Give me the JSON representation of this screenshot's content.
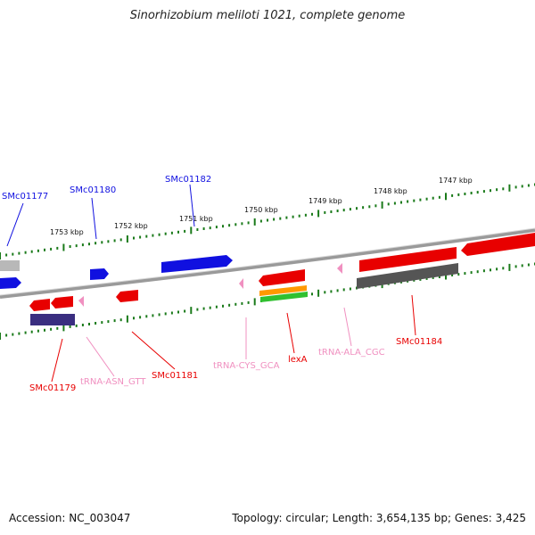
{
  "title": "Sinorhizobium meliloti 1021, complete genome",
  "footer": {
    "accession": "Accession: NC_003047",
    "summary": "Topology: circular; Length: 3,654,135 bp; Genes: 3,425"
  },
  "colors": {
    "forward_gene": "#1010e0",
    "reverse_gene": "#e80000",
    "trna": "#f090c0",
    "backbone": "#808080",
    "scale": "#1a7a1a",
    "dark_gray": "#555555",
    "navy": "#3a2e80",
    "orange": "#ff9900",
    "green": "#30c030"
  },
  "scale_labels": [
    "1753 kbp",
    "1752 kbp",
    "1751 kbp",
    "1750 kbp",
    "1749 kbp",
    "1748 kbp",
    "1747 kbp"
  ],
  "gene_labels": {
    "smc01177": "SMc01177",
    "smc01180": "SMc01180",
    "smc01182": "SMc01182",
    "smc01179": "SMc01179",
    "trna_asn": "tRNA-ASN_GTT",
    "smc01181": "SMc01181",
    "trna_cys": "tRNA-CYS_GCA",
    "lexa": "lexA",
    "trna_ala": "tRNA-ALA_CGC",
    "smc01184": "SMc01184"
  }
}
